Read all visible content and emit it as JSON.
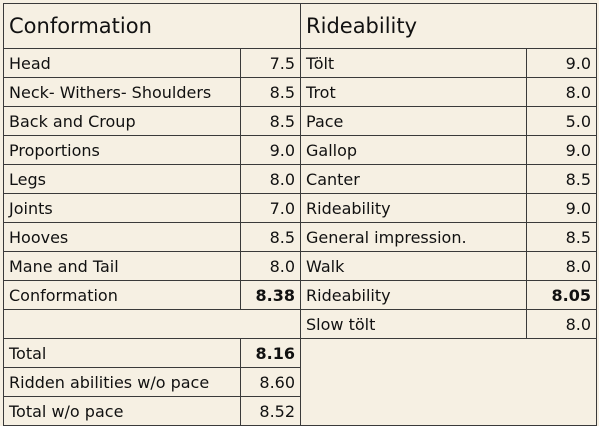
{
  "headers": {
    "conformation": "Conformation",
    "rideability": "Rideability"
  },
  "rows": [
    {
      "left_label": "Head",
      "left_value": "7.5",
      "right_label": "Tölt",
      "right_value": "9.0"
    },
    {
      "left_label": "Neck- Withers- Shoulders",
      "left_value": "8.5",
      "right_label": "Trot",
      "right_value": "8.0"
    },
    {
      "left_label": "Back and Croup",
      "left_value": "8.5",
      "right_label": "Pace",
      "right_value": "5.0"
    },
    {
      "left_label": "Proportions",
      "left_value": "9.0",
      "right_label": "Gallop",
      "right_value": "9.0"
    },
    {
      "left_label": "Legs",
      "left_value": "8.0",
      "right_label": "Canter",
      "right_value": "8.5"
    },
    {
      "left_label": "Joints",
      "left_value": "7.0",
      "right_label": "Rideability",
      "right_value": "9.0"
    },
    {
      "left_label": "Hooves",
      "left_value": "8.5",
      "right_label": "General impression.",
      "right_value": "8.5"
    },
    {
      "left_label": "Mane and Tail",
      "left_value": "8.0",
      "right_label": "Walk",
      "right_value": "8.0"
    }
  ],
  "subtotals": {
    "conformation_label": "Conformation",
    "conformation_value": "8.38",
    "rideability_label": "Rideability",
    "rideability_value": "8.05"
  },
  "slow_tolt": {
    "label": "Slow tölt",
    "value": "8.0"
  },
  "totals": [
    {
      "label": "Total",
      "value": "8.16",
      "bold": true
    },
    {
      "label": "Ridden abilities w/o pace",
      "value": "8.60",
      "bold": false
    },
    {
      "label": "Total w/o pace",
      "value": "8.52",
      "bold": false
    }
  ]
}
